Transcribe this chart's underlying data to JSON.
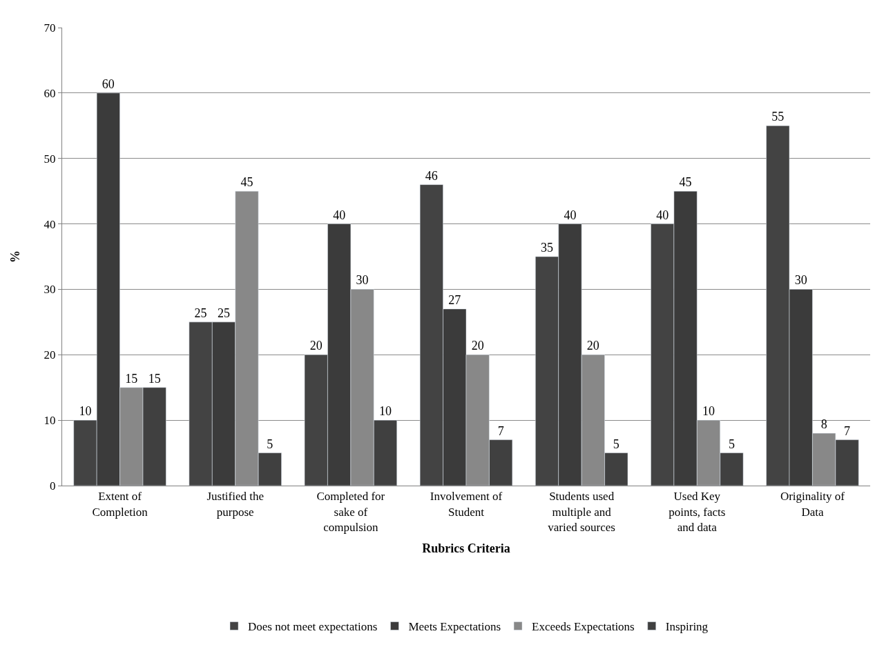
{
  "chart_data": {
    "type": "bar",
    "xlabel": "Rubrics Criteria",
    "ylabel": "%",
    "categories": [
      "Extent of Completion",
      "Justified the purpose",
      "Completed for sake of compulsion",
      "Involvement of Student",
      "Students used multiple and varied sources",
      "Used Key points, facts and data",
      "Originality of Data"
    ],
    "series": [
      {
        "name": "Does not meet expectations",
        "color": "#434343",
        "values": [
          10,
          25,
          20,
          46,
          35,
          40,
          55
        ]
      },
      {
        "name": "Meets Expectations",
        "color": "#3b3b3b",
        "values": [
          60,
          25,
          40,
          27,
          40,
          45,
          30
        ]
      },
      {
        "name": "Exceeds Expectations",
        "color": "#888888",
        "values": [
          15,
          45,
          30,
          20,
          20,
          10,
          8
        ]
      },
      {
        "name": "Inspiring",
        "color": "#404040",
        "values": [
          15,
          5,
          10,
          7,
          5,
          5,
          7
        ]
      }
    ],
    "ylim": [
      0,
      70
    ],
    "yticks": [
      0,
      10,
      20,
      30,
      40,
      50,
      60,
      70
    ],
    "grid": "y",
    "legend": "bottom",
    "data_labels": true
  }
}
